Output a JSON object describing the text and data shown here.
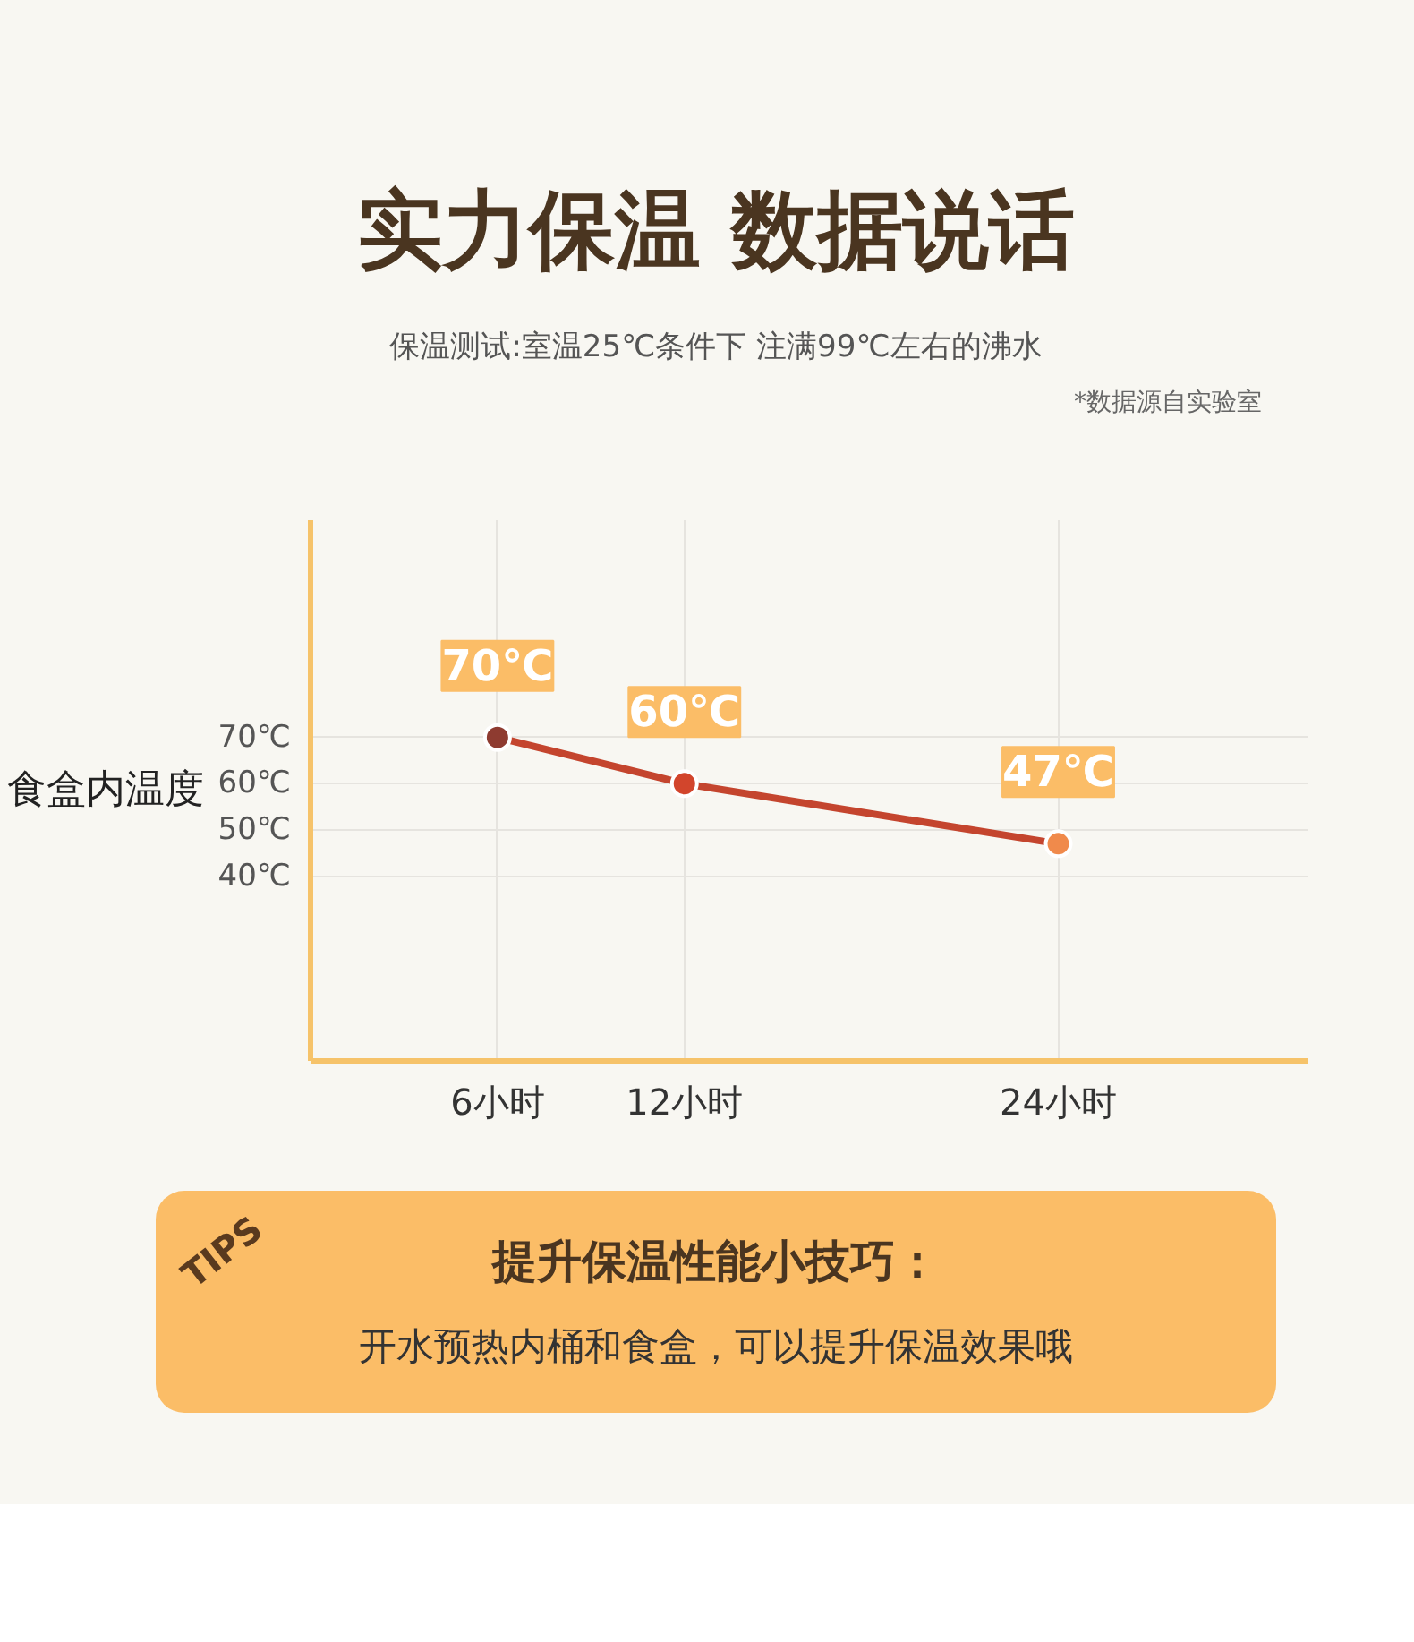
{
  "chart_data": {
    "type": "line",
    "title": "实力保温 数据说话",
    "subtitle": "保温测试:室温25℃条件下 注满99℃左右的沸水",
    "ylabel": "食盒内温度",
    "x": [
      6,
      12,
      24
    ],
    "xlim": [
      0,
      32
    ],
    "xticks": [
      {
        "value": 6,
        "label": "6小时"
      },
      {
        "value": 12,
        "label": "12小时"
      },
      {
        "value": 24,
        "label": "24小时"
      }
    ],
    "ylim": [
      0,
      117
    ],
    "yticks": [
      {
        "value": 40,
        "label": "40℃"
      },
      {
        "value": 50,
        "label": "50℃"
      },
      {
        "value": 60,
        "label": "60℃"
      },
      {
        "value": 70,
        "label": "70℃"
      }
    ],
    "series": [
      {
        "color": "#c4452e",
        "colors": [
          "#8e3b30",
          "#d2452c",
          "#f08a4b"
        ],
        "values": [
          70,
          60,
          47
        ],
        "value_labels": [
          "70℃",
          "60℃",
          "47℃"
        ]
      }
    ],
    "marker": "circle",
    "grid": true,
    "annotations": [
      "*数据源自实验室",
      "TIPS",
      "提升保温性能小技巧：",
      "开水预热内桶和食盒，可以提升保温效果哦"
    ]
  }
}
